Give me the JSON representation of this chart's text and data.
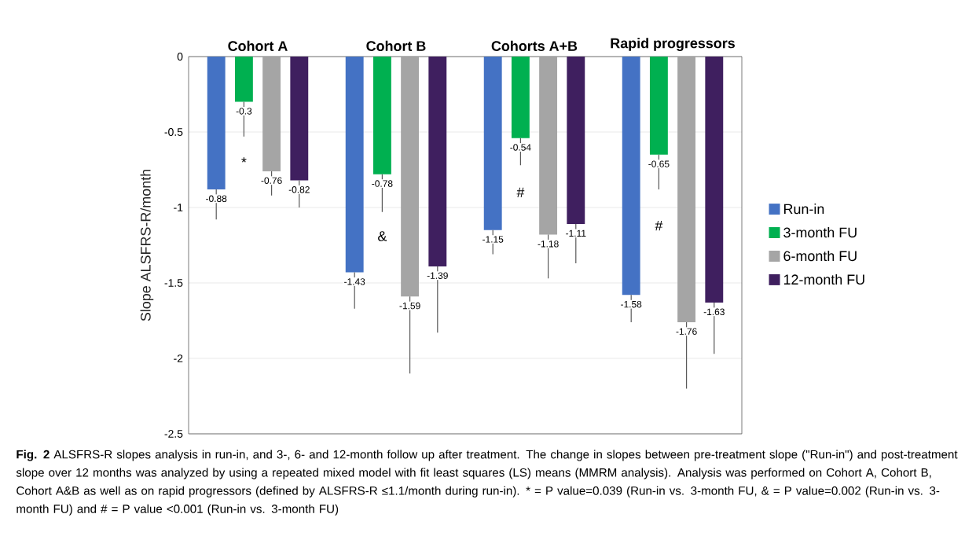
{
  "chart_data": {
    "type": "bar",
    "categories": [
      "Cohort A",
      "Cohort B",
      "Cohorts A+B",
      "Rapid progressors"
    ],
    "ylabel": "Slope  ALSFRS-R/month",
    "ylim": [
      -2.5,
      0
    ],
    "yticks": [
      0,
      -0.5,
      -1,
      -1.5,
      -2,
      -2.5
    ],
    "grid": "y",
    "legend": "right",
    "data_labels": true,
    "series": [
      {
        "name": "Run-in",
        "color": "#4472c4",
        "values": [
          -0.88,
          -1.43,
          -1.15,
          -1.58
        ],
        "errors": [
          [
            -1.08,
            -0.88
          ],
          [
            -1.67,
            -1.43
          ],
          [
            -1.31,
            -1.15
          ],
          [
            -1.76,
            -1.58
          ]
        ]
      },
      {
        "name": "3-month FU",
        "color": "#00b050",
        "values": [
          -0.3,
          -0.78,
          -0.54,
          -0.65
        ],
        "errors": [
          [
            -0.53,
            -0.3
          ],
          [
            -1.03,
            -0.78
          ],
          [
            -0.72,
            -0.54
          ],
          [
            -0.88,
            -0.65
          ]
        ]
      },
      {
        "name": "6-month FU",
        "color": "#a5a5a5",
        "values": [
          -0.76,
          -1.59,
          -1.18,
          -1.76
        ],
        "errors": [
          [
            -0.92,
            -0.76
          ],
          [
            -2.1,
            -1.59
          ],
          [
            -1.47,
            -1.18
          ],
          [
            -2.2,
            -1.76
          ]
        ]
      },
      {
        "name": "12-month FU",
        "color": "#3f1f5f",
        "values": [
          -0.82,
          -1.39,
          -1.11,
          -1.63
        ],
        "errors": [
          [
            -1.0,
            -0.82
          ],
          [
            -1.83,
            -1.39
          ],
          [
            -1.37,
            -1.11
          ],
          [
            -1.97,
            -1.63
          ]
        ]
      }
    ],
    "annotations": [
      {
        "text": "*",
        "x": "Cohort A",
        "y": -0.7
      },
      {
        "text": "&",
        "x": "Cohort B",
        "y": -1.19
      },
      {
        "text": "#",
        "x": "Cohorts A+B",
        "y": -0.9
      },
      {
        "text": "#",
        "x": "Rapid progressors",
        "y": -1.12
      },
      "**Fig. 2** ALSFRS-R slopes analysis in run-in, and 3-, 6- and 12-month follow up after treatment. The change in slopes between pre-treatment slope (\"Run-in\") and post-treatment slope over 12 months was analyzed by using a repeated mixed model with fit least squares (LS) means (MMRM analysis). Analysis was performed on Cohort A, Cohort B, Cohort A&B as well as on rapid progressors (defined by ALSFRS-R ≤1.1/month during run-in). * = P value=0.039 (Run-in vs. 3-month FU, & = P value=0.002 (Run-in vs. 3-month FU) and # = P value <0.001 (Run-in vs. 3-month FU)"
    ]
  }
}
